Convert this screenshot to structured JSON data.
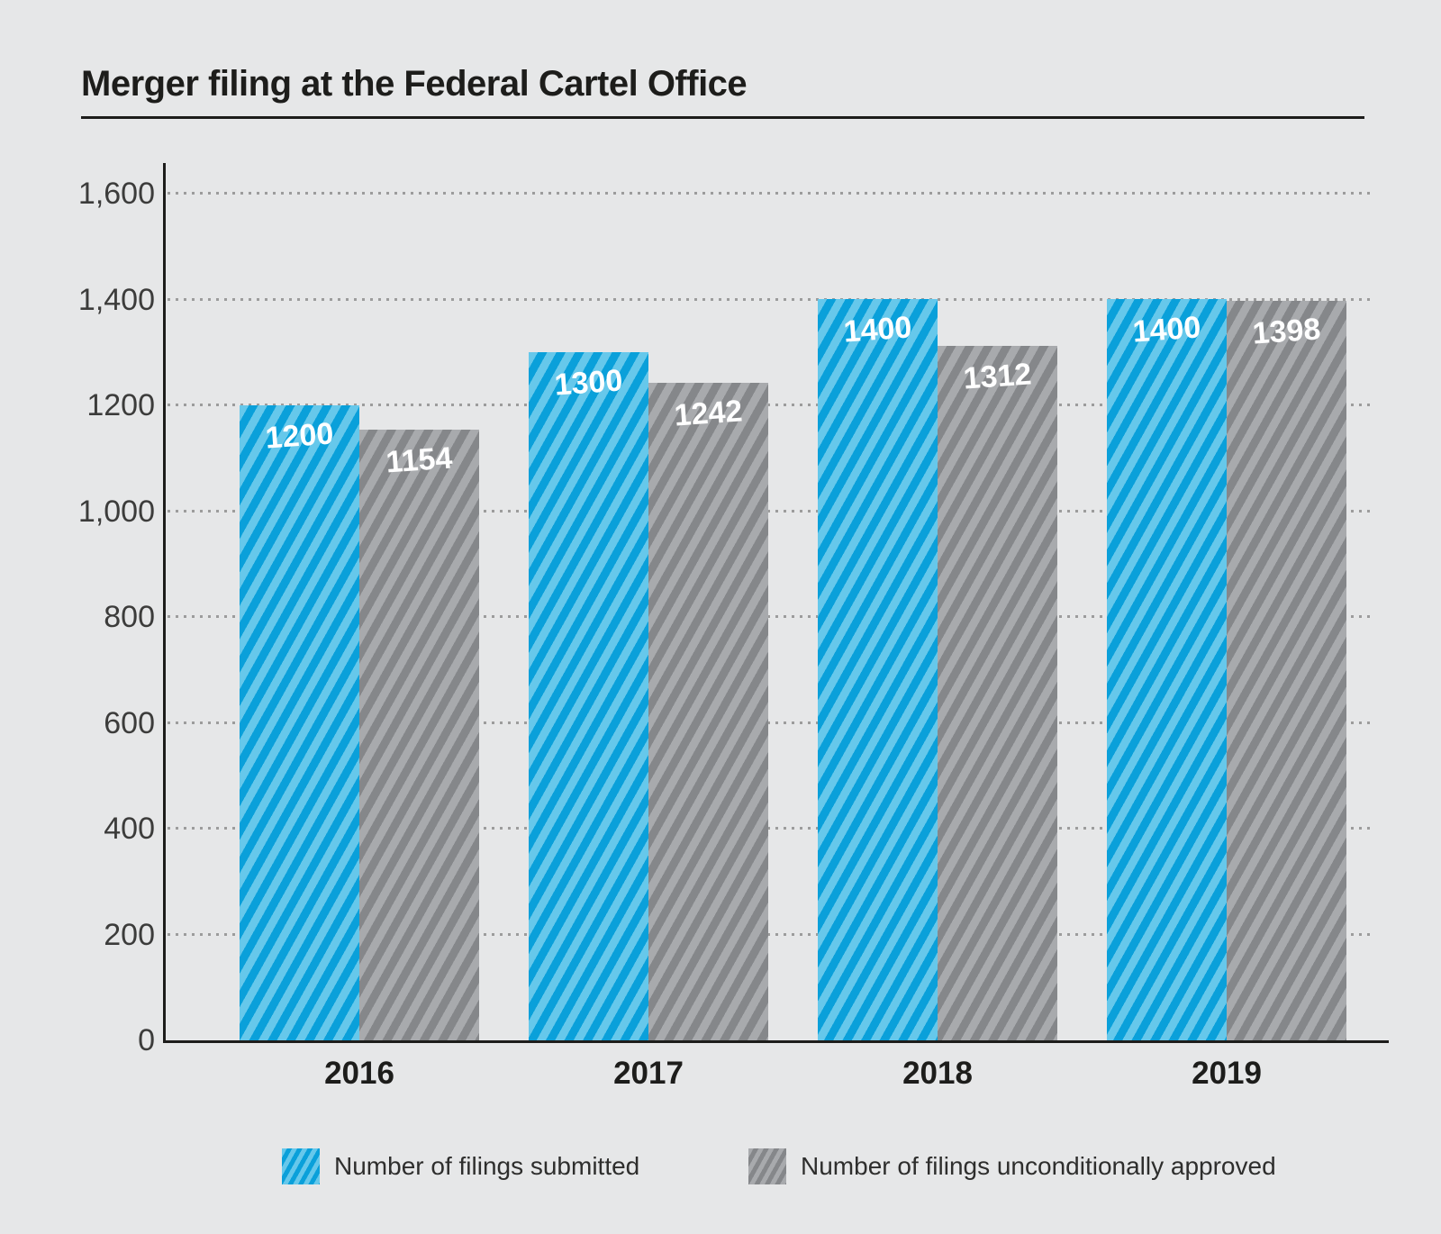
{
  "title": "Merger filing at the Federal Cartel Office",
  "colors": {
    "background": "#e6e7e8",
    "blue_light": "#66c8eb",
    "blue_dark": "#0aa0da",
    "gray_light": "#a8aaad",
    "gray_dark": "#85878a",
    "ink": "#1d1d1b",
    "grid_dot": "#9c9c9c",
    "bar_value_text": "#ffffff"
  },
  "chart_data": {
    "type": "bar",
    "title": "Merger filing at the Federal Cartel Office",
    "categories": [
      "2016",
      "2017",
      "2018",
      "2019"
    ],
    "series": [
      {
        "name": "Number of filings submitted",
        "color_key": "blue",
        "values": [
          1200,
          1300,
          1400,
          1400
        ],
        "bar_labels": [
          "1200",
          "1300",
          "1400",
          "1400"
        ]
      },
      {
        "name": "Number of filings unconditionally approved",
        "color_key": "gray",
        "values": [
          1154,
          1242,
          1312,
          1398
        ],
        "bar_labels": [
          "1154",
          "1242",
          "1312",
          "1398"
        ]
      }
    ],
    "xlabel": "",
    "ylabel": "",
    "ylim": [
      0,
      1600
    ],
    "ytick_values": [
      0,
      200,
      400,
      600,
      800,
      1000,
      1200,
      1400,
      1600
    ],
    "ytick_labels": [
      "0",
      "200",
      "400",
      "600",
      "800",
      "1,000",
      "1200",
      "1,400",
      "1,600"
    ],
    "grid": "dotted-horizontal",
    "legend_position": "bottom",
    "bar_pattern": "diagonal-stripes"
  },
  "legend": {
    "items": [
      {
        "label": "Number of filings submitted"
      },
      {
        "label": "Number of filings unconditionally approved"
      }
    ]
  }
}
